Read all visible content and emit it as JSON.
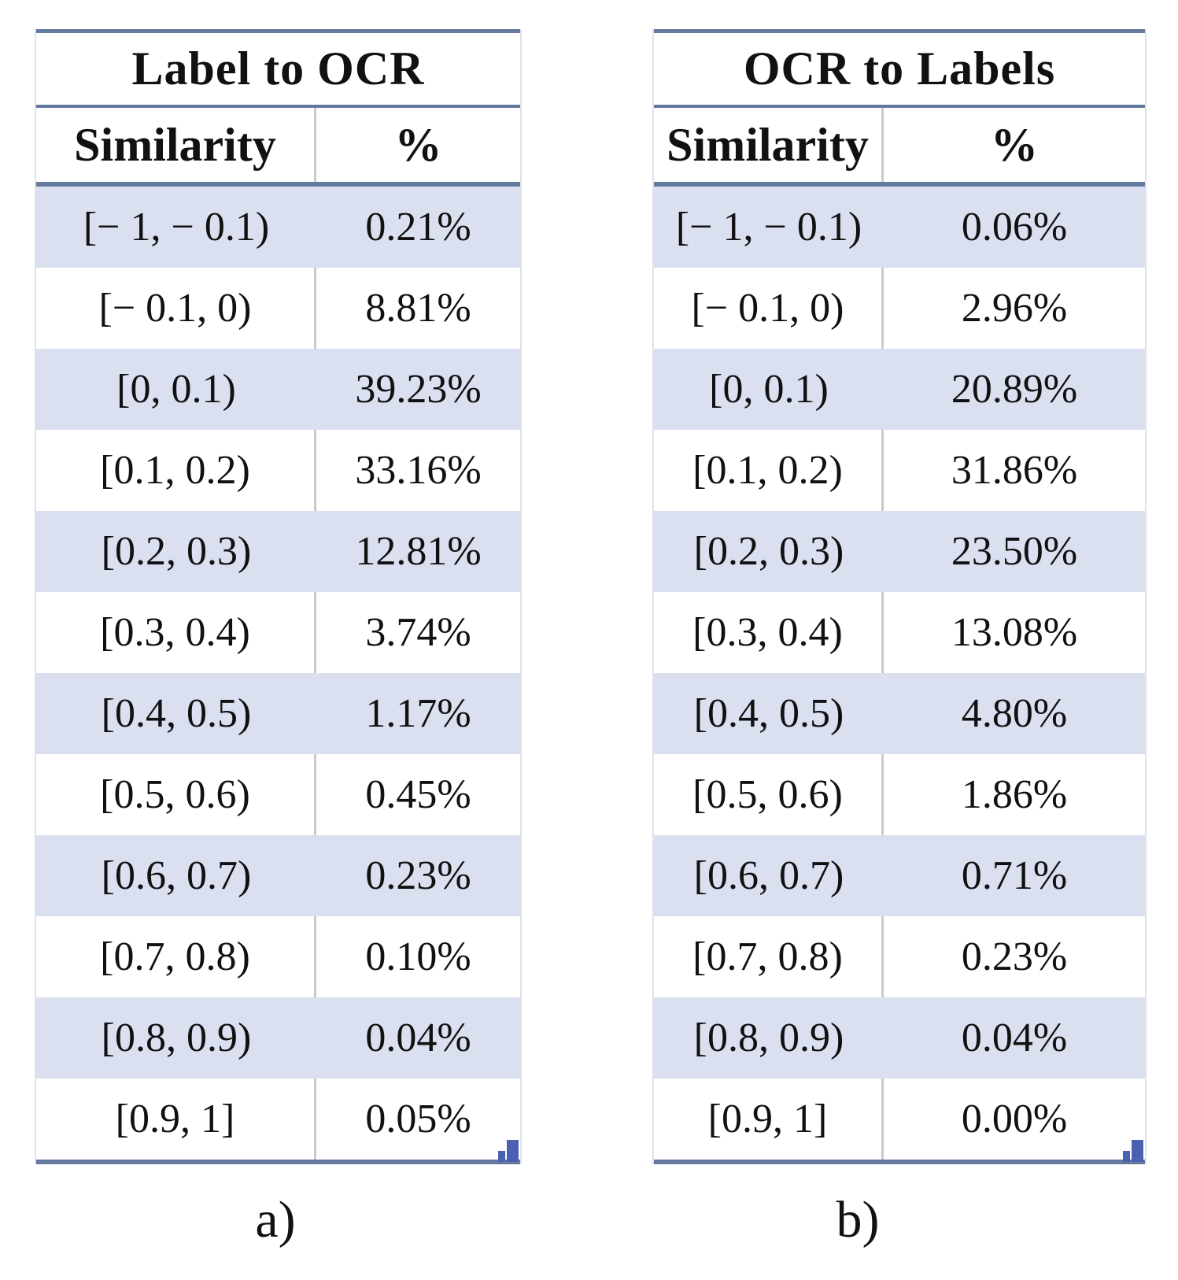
{
  "figure": {
    "tables": [
      {
        "title": "Label to OCR",
        "col_headers": [
          "Similarity",
          "%"
        ],
        "rows": [
          [
            "[− 1, − 0.1)",
            "0.21%"
          ],
          [
            "[− 0.1, 0)",
            "8.81%"
          ],
          [
            "[0, 0.1)",
            "39.23%"
          ],
          [
            "[0.1, 0.2)",
            "33.16%"
          ],
          [
            "[0.2, 0.3)",
            "12.81%"
          ],
          [
            "[0.3, 0.4)",
            "3.74%"
          ],
          [
            "[0.4, 0.5)",
            "1.17%"
          ],
          [
            "[0.5, 0.6)",
            "0.45%"
          ],
          [
            "[0.6, 0.7)",
            "0.23%"
          ],
          [
            "[0.7, 0.8)",
            "0.10%"
          ],
          [
            "[0.8, 0.9)",
            "0.04%"
          ],
          [
            "[0.9, 1]",
            "0.05%"
          ]
        ],
        "caption": "a)"
      },
      {
        "title": "OCR to Labels",
        "col_headers": [
          "Similarity",
          "%"
        ],
        "rows": [
          [
            "[− 1, − 0.1)",
            "0.06%"
          ],
          [
            "[− 0.1, 0)",
            "2.96%"
          ],
          [
            "[0, 0.1)",
            "20.89%"
          ],
          [
            "[0.1, 0.2)",
            "31.86%"
          ],
          [
            "[0.2, 0.3)",
            "23.50%"
          ],
          [
            "[0.3, 0.4)",
            "13.08%"
          ],
          [
            "[0.4, 0.5)",
            "4.80%"
          ],
          [
            "[0.5, 0.6)",
            "1.86%"
          ],
          [
            "[0.6, 0.7)",
            "0.71%"
          ],
          [
            "[0.7, 0.8)",
            "0.23%"
          ],
          [
            "[0.8, 0.9)",
            "0.04%"
          ],
          [
            "[0.9, 1]",
            "0.00%"
          ]
        ],
        "caption": "b)"
      }
    ],
    "colors": {
      "border": "#64799e",
      "row_shade": "#dbe0f0",
      "column_divider": "#c9c9c9",
      "corner_mark": "#4b60b0"
    }
  }
}
